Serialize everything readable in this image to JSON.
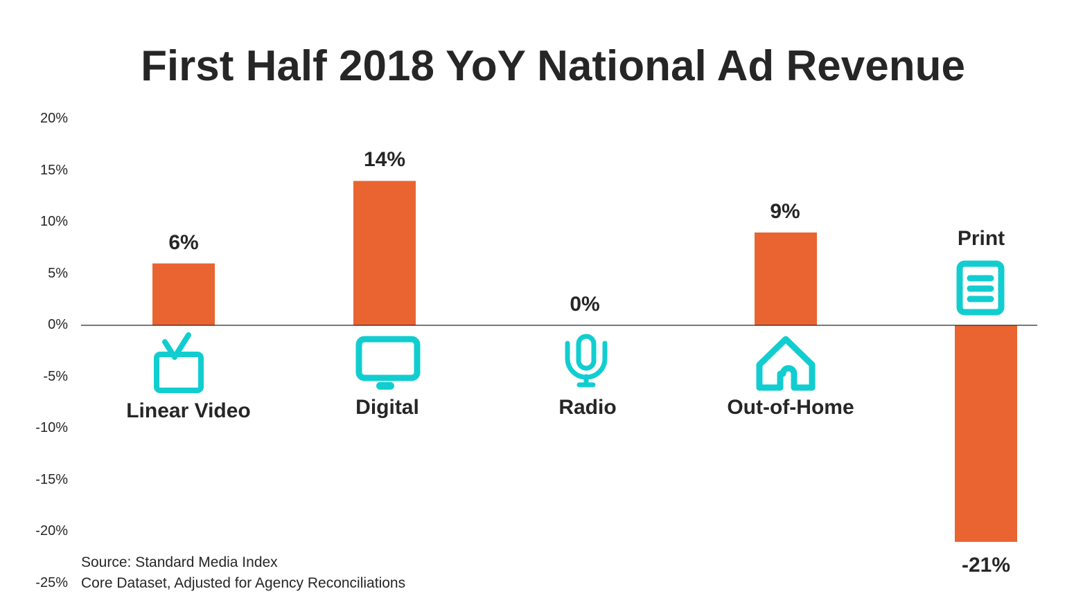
{
  "chart_data": {
    "type": "bar",
    "title": "First Half 2018 YoY National Ad Revenue",
    "categories": [
      "Linear Video",
      "Digital",
      "Radio",
      "Out-of-Home",
      "Print"
    ],
    "values": [
      6,
      14,
      0,
      9,
      -21
    ],
    "data_labels": [
      "6%",
      "14%",
      "0%",
      "9%",
      "-21%"
    ],
    "ylim": [
      -25,
      20
    ],
    "yticks": [
      "20%",
      "15%",
      "10%",
      "5%",
      "0%",
      "-5%",
      "-10%",
      "-15%",
      "-20%",
      "-25%"
    ],
    "xlabel": "",
    "ylabel": "",
    "grid": false,
    "bar_color": "#E96430",
    "icon_color": "#12CDD0",
    "icons": [
      "tv-icon",
      "monitor-icon",
      "microphone-icon",
      "house-icon",
      "document-icon"
    ]
  },
  "source": {
    "line1": "Source: Standard Media Index",
    "line2": "Core Dataset, Adjusted for Agency Reconciliations"
  }
}
